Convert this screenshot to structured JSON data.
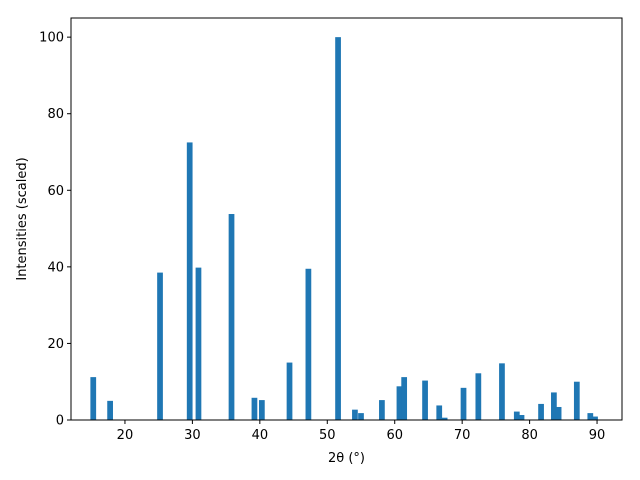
{
  "chart_data": {
    "type": "bar",
    "title": "",
    "xlabel": "2θ (°)",
    "ylabel": "Intensities (scaled)",
    "xlim": [
      12.0,
      93.7
    ],
    "ylim": [
      0,
      105
    ],
    "xticks": [
      20,
      30,
      40,
      50,
      60,
      70,
      80,
      90
    ],
    "yticks": [
      0,
      20,
      40,
      60,
      80,
      100
    ],
    "bar_width": 0.85,
    "color": "#1f77b4",
    "grid": false,
    "legend": "none",
    "x": [
      15.3,
      17.8,
      25.2,
      29.6,
      30.9,
      35.8,
      39.2,
      40.3,
      44.4,
      47.2,
      51.6,
      54.1,
      55.0,
      58.1,
      60.7,
      61.4,
      64.5,
      66.6,
      67.4,
      70.2,
      72.4,
      75.9,
      78.1,
      78.8,
      81.7,
      83.6,
      84.3,
      87.0,
      89.0,
      89.7
    ],
    "values": [
      11.2,
      5.0,
      38.5,
      72.5,
      39.8,
      53.8,
      5.8,
      5.2,
      15.0,
      39.5,
      100.0,
      2.7,
      1.8,
      5.2,
      8.8,
      11.2,
      10.3,
      3.8,
      0.6,
      8.4,
      12.2,
      14.8,
      2.2,
      1.3,
      4.2,
      7.2,
      3.4,
      10.0,
      1.8,
      0.9
    ]
  }
}
